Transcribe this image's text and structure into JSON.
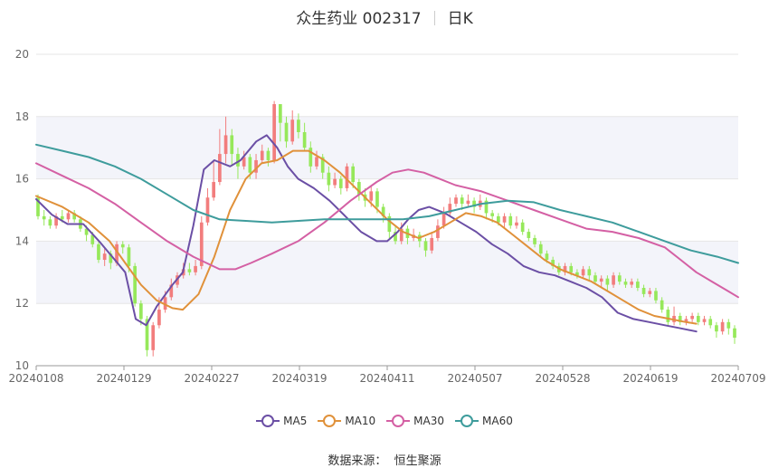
{
  "title": {
    "name": "众生药业 002317",
    "period": "日K"
  },
  "source": "数据来源：  恒生聚源",
  "colors": {
    "up": "#f27d7d",
    "down": "#96e85a",
    "band": "#f3f4fa",
    "grid": "#e6e6e6",
    "MA5": "#6b4fa5",
    "MA10": "#e0913a",
    "MA30": "#d460a4",
    "MA60": "#3e9c9c"
  },
  "chart_data": {
    "type": "candlestick",
    "x_tick_labels": [
      "20240108",
      "20240129",
      "20240227",
      "20240319",
      "20240411",
      "20240507",
      "20240528",
      "20240619",
      "20240709"
    ],
    "x_tick_index": [
      0,
      15,
      30,
      45,
      60,
      75,
      90,
      105,
      120
    ],
    "ylim": [
      10,
      20
    ],
    "y_ticks": [
      10,
      12,
      14,
      16,
      18,
      20
    ],
    "legend": [
      "MA5",
      "MA10",
      "MA30",
      "MA60"
    ],
    "legend_position": "bottom",
    "candles": [
      [
        15.4,
        14.8,
        15.5,
        14.7
      ],
      [
        14.8,
        14.7,
        15.0,
        14.5
      ],
      [
        14.7,
        14.5,
        14.8,
        14.4
      ],
      [
        14.5,
        14.8,
        14.9,
        14.4
      ],
      [
        14.8,
        14.7,
        15.0,
        14.6
      ],
      [
        14.7,
        14.9,
        15.0,
        14.6
      ],
      [
        14.9,
        14.7,
        15.0,
        14.6
      ],
      [
        14.7,
        14.4,
        14.8,
        14.3
      ],
      [
        14.4,
        14.2,
        14.5,
        14.0
      ],
      [
        14.2,
        13.9,
        14.3,
        13.8
      ],
      [
        13.9,
        13.4,
        14.0,
        13.3
      ],
      [
        13.4,
        13.6,
        13.8,
        13.2
      ],
      [
        13.6,
        13.3,
        13.7,
        13.1
      ],
      [
        13.3,
        13.9,
        14.0,
        13.2
      ],
      [
        13.9,
        13.8,
        14.0,
        13.6
      ],
      [
        13.8,
        13.2,
        13.9,
        13.0
      ],
      [
        13.2,
        12.0,
        13.3,
        11.9
      ],
      [
        12.0,
        11.5,
        12.1,
        11.3
      ],
      [
        11.5,
        10.5,
        11.6,
        10.3
      ],
      [
        10.5,
        11.3,
        11.4,
        10.3
      ],
      [
        11.3,
        11.8,
        12.2,
        11.2
      ],
      [
        11.8,
        12.2,
        12.4,
        11.7
      ],
      [
        12.2,
        12.6,
        12.8,
        12.1
      ],
      [
        12.6,
        12.9,
        13.0,
        12.5
      ],
      [
        12.9,
        13.1,
        13.3,
        12.8
      ],
      [
        13.1,
        13.0,
        13.3,
        12.9
      ],
      [
        13.0,
        13.2,
        13.4,
        12.9
      ],
      [
        13.2,
        14.6,
        14.8,
        13.1
      ],
      [
        14.6,
        15.4,
        15.7,
        14.5
      ],
      [
        15.4,
        15.9,
        16.6,
        15.3
      ],
      [
        15.9,
        16.8,
        17.6,
        15.8
      ],
      [
        16.8,
        17.4,
        18.0,
        16.5
      ],
      [
        17.4,
        16.8,
        17.6,
        16.4
      ],
      [
        16.8,
        16.4,
        17.0,
        16.0
      ],
      [
        16.4,
        16.7,
        16.9,
        16.3
      ],
      [
        16.7,
        16.2,
        16.8,
        16.0
      ],
      [
        16.2,
        16.6,
        16.8,
        16.0
      ],
      [
        16.6,
        16.9,
        17.1,
        16.5
      ],
      [
        16.9,
        16.6,
        17.0,
        16.4
      ],
      [
        16.6,
        18.4,
        18.5,
        16.5
      ],
      [
        18.4,
        17.8,
        18.2,
        17.2
      ],
      [
        17.8,
        17.2,
        18.0,
        17.0
      ],
      [
        17.2,
        17.9,
        18.2,
        17.1
      ],
      [
        17.9,
        17.5,
        18.1,
        17.3
      ],
      [
        17.5,
        17.0,
        17.8,
        16.9
      ],
      [
        17.0,
        16.4,
        17.2,
        16.2
      ],
      [
        16.4,
        16.7,
        16.9,
        16.3
      ],
      [
        16.7,
        16.2,
        16.8,
        16.0
      ],
      [
        16.2,
        15.8,
        16.4,
        15.6
      ],
      [
        15.8,
        16.0,
        16.2,
        15.7
      ],
      [
        16.0,
        15.7,
        16.1,
        15.5
      ],
      [
        15.7,
        16.4,
        16.5,
        15.6
      ],
      [
        16.4,
        15.9,
        16.5,
        15.7
      ],
      [
        15.9,
        15.5,
        16.0,
        15.3
      ],
      [
        15.5,
        15.3,
        15.7,
        15.1
      ],
      [
        15.3,
        15.6,
        15.8,
        15.1
      ],
      [
        15.6,
        15.1,
        15.7,
        14.9
      ],
      [
        15.1,
        14.8,
        15.2,
        14.6
      ],
      [
        14.8,
        14.3,
        14.9,
        14.1
      ],
      [
        14.3,
        14.0,
        14.5,
        13.9
      ],
      [
        14.0,
        14.4,
        14.6,
        13.9
      ],
      [
        14.4,
        14.1,
        14.5,
        13.9
      ],
      [
        14.1,
        14.2,
        14.4,
        14.0
      ],
      [
        14.2,
        14.0,
        14.3,
        13.8
      ],
      [
        14.0,
        13.7,
        14.1,
        13.5
      ],
      [
        13.7,
        14.1,
        14.3,
        13.6
      ],
      [
        14.1,
        14.5,
        14.7,
        14.0
      ],
      [
        14.5,
        14.9,
        15.1,
        14.4
      ],
      [
        14.9,
        15.2,
        15.4,
        14.8
      ],
      [
        15.2,
        15.4,
        15.5,
        15.1
      ],
      [
        15.4,
        15.2,
        15.5,
        15.0
      ],
      [
        15.2,
        15.3,
        15.5,
        15.1
      ],
      [
        15.3,
        15.1,
        15.4,
        14.9
      ],
      [
        15.1,
        15.3,
        15.5,
        15.0
      ],
      [
        15.3,
        14.9,
        15.4,
        14.7
      ],
      [
        14.9,
        14.8,
        15.0,
        14.6
      ],
      [
        14.8,
        14.6,
        14.9,
        14.5
      ],
      [
        14.6,
        14.8,
        14.9,
        14.4
      ],
      [
        14.8,
        14.5,
        14.9,
        14.4
      ],
      [
        14.5,
        14.6,
        14.8,
        14.4
      ],
      [
        14.6,
        14.3,
        14.7,
        14.2
      ],
      [
        14.3,
        14.1,
        14.4,
        14.0
      ],
      [
        14.1,
        13.9,
        14.2,
        13.8
      ],
      [
        13.9,
        13.6,
        14.0,
        13.5
      ],
      [
        13.6,
        13.4,
        13.7,
        13.3
      ],
      [
        13.4,
        13.2,
        13.5,
        13.1
      ],
      [
        13.2,
        13.0,
        13.3,
        12.9
      ],
      [
        13.0,
        13.2,
        13.3,
        12.9
      ],
      [
        13.2,
        13.0,
        13.3,
        12.9
      ],
      [
        13.0,
        12.9,
        13.1,
        12.8
      ],
      [
        12.9,
        13.1,
        13.2,
        12.8
      ],
      [
        13.1,
        12.9,
        13.2,
        12.7
      ],
      [
        12.9,
        12.7,
        13.0,
        12.6
      ],
      [
        12.7,
        12.8,
        12.9,
        12.5
      ],
      [
        12.8,
        12.6,
        12.9,
        12.4
      ],
      [
        12.6,
        12.9,
        13.0,
        12.5
      ],
      [
        12.9,
        12.7,
        13.0,
        12.6
      ],
      [
        12.7,
        12.6,
        12.8,
        12.5
      ],
      [
        12.6,
        12.7,
        12.8,
        12.5
      ],
      [
        12.7,
        12.5,
        12.8,
        12.4
      ],
      [
        12.5,
        12.3,
        12.6,
        12.2
      ],
      [
        12.3,
        12.4,
        12.5,
        12.2
      ],
      [
        12.4,
        12.1,
        12.5,
        12.0
      ],
      [
        12.1,
        11.8,
        12.2,
        11.7
      ],
      [
        11.8,
        11.4,
        11.9,
        11.3
      ],
      [
        11.4,
        11.6,
        11.9,
        11.3
      ],
      [
        11.6,
        11.4,
        11.7,
        11.3
      ],
      [
        11.4,
        11.5,
        11.6,
        11.3
      ],
      [
        11.5,
        11.6,
        11.7,
        11.4
      ],
      [
        11.6,
        11.4,
        11.7,
        11.3
      ],
      [
        11.4,
        11.5,
        11.6,
        11.3
      ],
      [
        11.5,
        11.3,
        11.6,
        11.2
      ],
      [
        11.3,
        11.1,
        11.4,
        10.9
      ],
      [
        11.1,
        11.4,
        11.5,
        11.0
      ],
      [
        11.4,
        11.2,
        11.5,
        11.0
      ],
      [
        11.2,
        10.9,
        11.3,
        10.7
      ]
    ],
    "ma": {
      "MA5": [
        [
          0,
          15.35
        ],
        [
          3,
          14.85
        ],
        [
          6,
          14.55
        ],
        [
          9,
          14.55
        ],
        [
          12,
          14.0
        ],
        [
          15,
          13.4
        ],
        [
          17,
          13.0
        ],
        [
          19,
          11.5
        ],
        [
          21,
          11.3
        ],
        [
          23,
          11.9
        ],
        [
          26,
          12.6
        ],
        [
          28,
          13.0
        ],
        [
          30,
          14.5
        ],
        [
          32,
          16.3
        ],
        [
          34,
          16.6
        ],
        [
          37,
          16.4
        ],
        [
          39,
          16.6
        ],
        [
          42,
          17.2
        ],
        [
          44,
          17.4
        ],
        [
          46,
          17.0
        ],
        [
          48,
          16.4
        ],
        [
          50,
          16.0
        ],
        [
          53,
          15.7
        ],
        [
          56,
          15.3
        ],
        [
          59,
          14.8
        ],
        [
          62,
          14.3
        ],
        [
          65,
          14.0
        ],
        [
          67,
          14.0
        ],
        [
          69,
          14.3
        ],
        [
          71,
          14.7
        ],
        [
          73,
          15.0
        ],
        [
          75,
          15.1
        ],
        [
          78,
          14.9
        ],
        [
          81,
          14.6
        ],
        [
          84,
          14.3
        ],
        [
          87,
          13.9
        ],
        [
          90,
          13.6
        ],
        [
          93,
          13.2
        ],
        [
          96,
          13.0
        ],
        [
          99,
          12.9
        ],
        [
          102,
          12.7
        ],
        [
          105,
          12.5
        ],
        [
          108,
          12.2
        ],
        [
          111,
          11.7
        ],
        [
          114,
          11.5
        ],
        [
          117,
          11.4
        ],
        [
          120,
          11.3
        ],
        [
          123,
          11.2
        ],
        [
          126,
          11.1
        ]
      ],
      "MA10": [
        [
          0,
          15.45
        ],
        [
          5,
          15.1
        ],
        [
          10,
          14.6
        ],
        [
          14,
          14.0
        ],
        [
          17,
          13.3
        ],
        [
          20,
          12.6
        ],
        [
          23,
          12.1
        ],
        [
          26,
          11.85
        ],
        [
          28,
          11.8
        ],
        [
          31,
          12.3
        ],
        [
          34,
          13.5
        ],
        [
          37,
          15.0
        ],
        [
          40,
          16.0
        ],
        [
          43,
          16.5
        ],
        [
          46,
          16.6
        ],
        [
          49,
          16.9
        ],
        [
          52,
          16.9
        ],
        [
          55,
          16.6
        ],
        [
          58,
          16.2
        ],
        [
          61,
          15.7
        ],
        [
          64,
          15.2
        ],
        [
          67,
          14.7
        ],
        [
          70,
          14.3
        ],
        [
          73,
          14.1
        ],
        [
          76,
          14.3
        ],
        [
          79,
          14.6
        ],
        [
          82,
          14.9
        ],
        [
          85,
          14.8
        ],
        [
          88,
          14.6
        ],
        [
          91,
          14.2
        ],
        [
          94,
          13.8
        ],
        [
          97,
          13.4
        ],
        [
          100,
          13.1
        ],
        [
          103,
          12.9
        ],
        [
          106,
          12.7
        ],
        [
          109,
          12.4
        ],
        [
          112,
          12.1
        ],
        [
          115,
          11.8
        ],
        [
          118,
          11.6
        ],
        [
          121,
          11.5
        ],
        [
          124,
          11.4
        ],
        [
          126,
          11.35
        ]
      ],
      "MA30": [
        [
          0,
          16.5
        ],
        [
          5,
          16.1
        ],
        [
          10,
          15.7
        ],
        [
          15,
          15.2
        ],
        [
          20,
          14.6
        ],
        [
          25,
          14.0
        ],
        [
          30,
          13.5
        ],
        [
          35,
          13.1
        ],
        [
          38,
          13.1
        ],
        [
          41,
          13.3
        ],
        [
          45,
          13.6
        ],
        [
          50,
          14.0
        ],
        [
          55,
          14.6
        ],
        [
          60,
          15.3
        ],
        [
          65,
          15.9
        ],
        [
          68,
          16.2
        ],
        [
          71,
          16.3
        ],
        [
          74,
          16.2
        ],
        [
          77,
          16.0
        ],
        [
          80,
          15.8
        ],
        [
          85,
          15.6
        ],
        [
          90,
          15.3
        ],
        [
          95,
          15.0
        ],
        [
          100,
          14.7
        ],
        [
          105,
          14.4
        ],
        [
          110,
          14.3
        ],
        [
          115,
          14.1
        ],
        [
          120,
          13.8
        ],
        [
          123,
          13.4
        ],
        [
          126,
          13.0
        ],
        [
          129,
          12.7
        ],
        [
          132,
          12.4
        ],
        [
          134,
          12.2
        ]
      ],
      "MA60": [
        [
          0,
          17.1
        ],
        [
          5,
          16.9
        ],
        [
          10,
          16.7
        ],
        [
          15,
          16.4
        ],
        [
          20,
          16.0
        ],
        [
          25,
          15.5
        ],
        [
          30,
          15.0
        ],
        [
          35,
          14.7
        ],
        [
          40,
          14.65
        ],
        [
          45,
          14.6
        ],
        [
          50,
          14.65
        ],
        [
          55,
          14.7
        ],
        [
          60,
          14.7
        ],
        [
          65,
          14.7
        ],
        [
          70,
          14.7
        ],
        [
          75,
          14.8
        ],
        [
          80,
          15.0
        ],
        [
          85,
          15.2
        ],
        [
          90,
          15.3
        ],
        [
          95,
          15.25
        ],
        [
          100,
          15.0
        ],
        [
          105,
          14.8
        ],
        [
          110,
          14.6
        ],
        [
          115,
          14.3
        ],
        [
          120,
          14.0
        ],
        [
          125,
          13.7
        ],
        [
          130,
          13.5
        ],
        [
          134,
          13.3
        ]
      ]
    },
    "x_max_index": 134
  }
}
